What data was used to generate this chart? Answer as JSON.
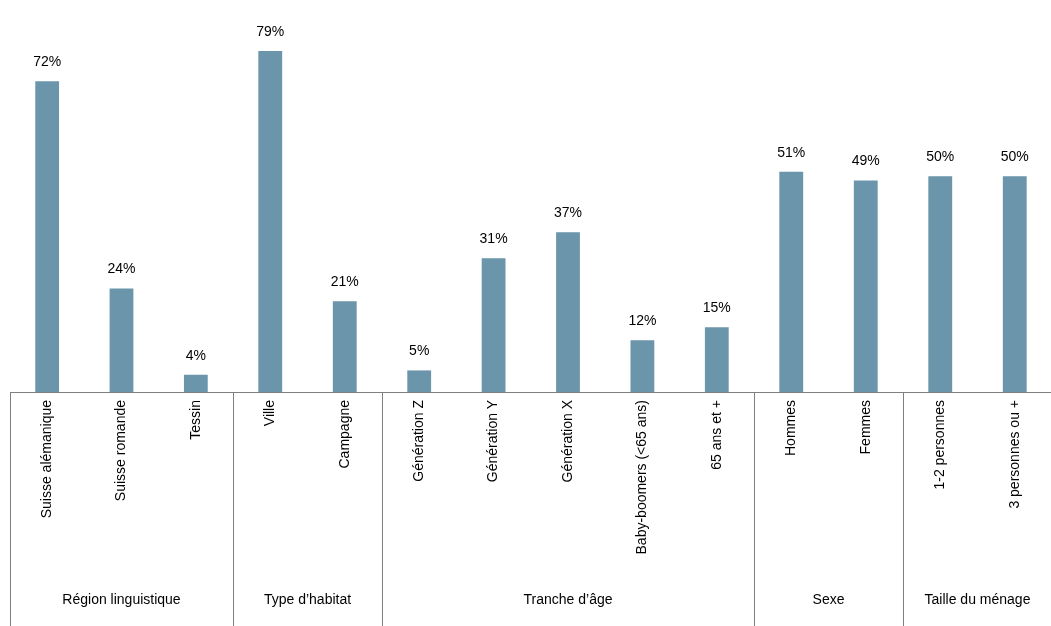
{
  "chart_data": [
    {
      "type": "bar",
      "categories": [
        "Suisse alémanique",
        "Suisse romande",
        "Tessin"
      ],
      "values": [
        72,
        24,
        4
      ],
      "value_labels": [
        "72%",
        "24%",
        "4%"
      ],
      "color": "#6a95aa",
      "xlabel": "Région linguistique",
      "tick_labels": "x",
      "grid": false,
      "legend": false
    },
    {
      "type": "bar",
      "categories": [
        "Ville",
        "Campagne"
      ],
      "values": [
        79,
        21
      ],
      "value_labels": [
        "79%",
        "21%"
      ],
      "color": "#6a95aa",
      "xlabel": "Type d’habitat",
      "tick_labels": "x",
      "grid": false,
      "legend": false
    },
    {
      "type": "bar",
      "categories": [
        "Génération Z",
        "Génération Y",
        "Génération X",
        "Baby-boomers (<65 ans)",
        "65 ans et +"
      ],
      "values": [
        5,
        31,
        37,
        12,
        15
      ],
      "value_labels": [
        "5%",
        "31%",
        "37%",
        "12%",
        "15%"
      ],
      "color": "#6a95aa",
      "xlabel": "Tranche d’âge",
      "tick_labels": "x",
      "grid": false,
      "legend": false
    },
    {
      "type": "bar",
      "categories": [
        "Hommes",
        "Femmes"
      ],
      "values": [
        51,
        49
      ],
      "value_labels": [
        "51%",
        "49%"
      ],
      "color": "#6a95aa",
      "xlabel": "Sexe",
      "tick_labels": "x",
      "grid": false,
      "legend": false
    },
    {
      "type": "bar",
      "categories": [
        "1-2 personnes",
        "3 personnes ou +"
      ],
      "values": [
        50,
        50
      ],
      "value_labels": [
        "50%",
        "50%"
      ],
      "color": "#6a95aa",
      "xlabel": "Taille du ménage",
      "tick_labels": "x",
      "grid": false,
      "legend": false
    }
  ]
}
